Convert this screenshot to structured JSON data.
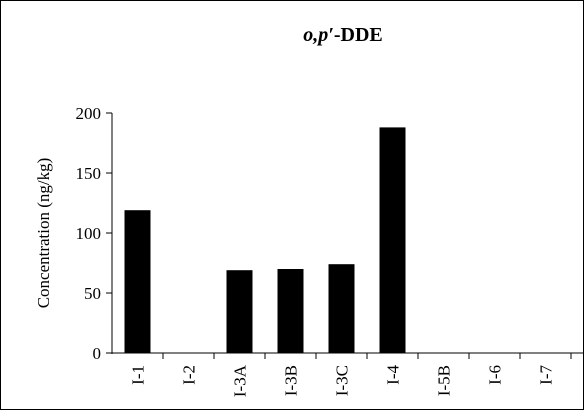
{
  "chart_data": {
    "type": "bar",
    "title_italic": "o,p′",
    "title_rest": "-DDE",
    "ylabel": "Concentration (ng/kg)",
    "xlabel": "",
    "categories": [
      "I-1",
      "I-2",
      "I-3A",
      "I-3B",
      "I-3C",
      "I-4",
      "I-5B",
      "I-6",
      "I-7"
    ],
    "values": [
      119,
      0,
      69,
      70,
      74,
      188,
      0,
      0,
      0
    ],
    "ylim": [
      0,
      200
    ],
    "yticks": [
      0,
      50,
      100,
      150,
      200
    ],
    "ytick_labels": [
      "0",
      "50",
      "100",
      "150",
      "200"
    ],
    "grid": false,
    "colors": {
      "bar": "#000000",
      "axis": "#000000",
      "background": "#ffffff"
    }
  }
}
